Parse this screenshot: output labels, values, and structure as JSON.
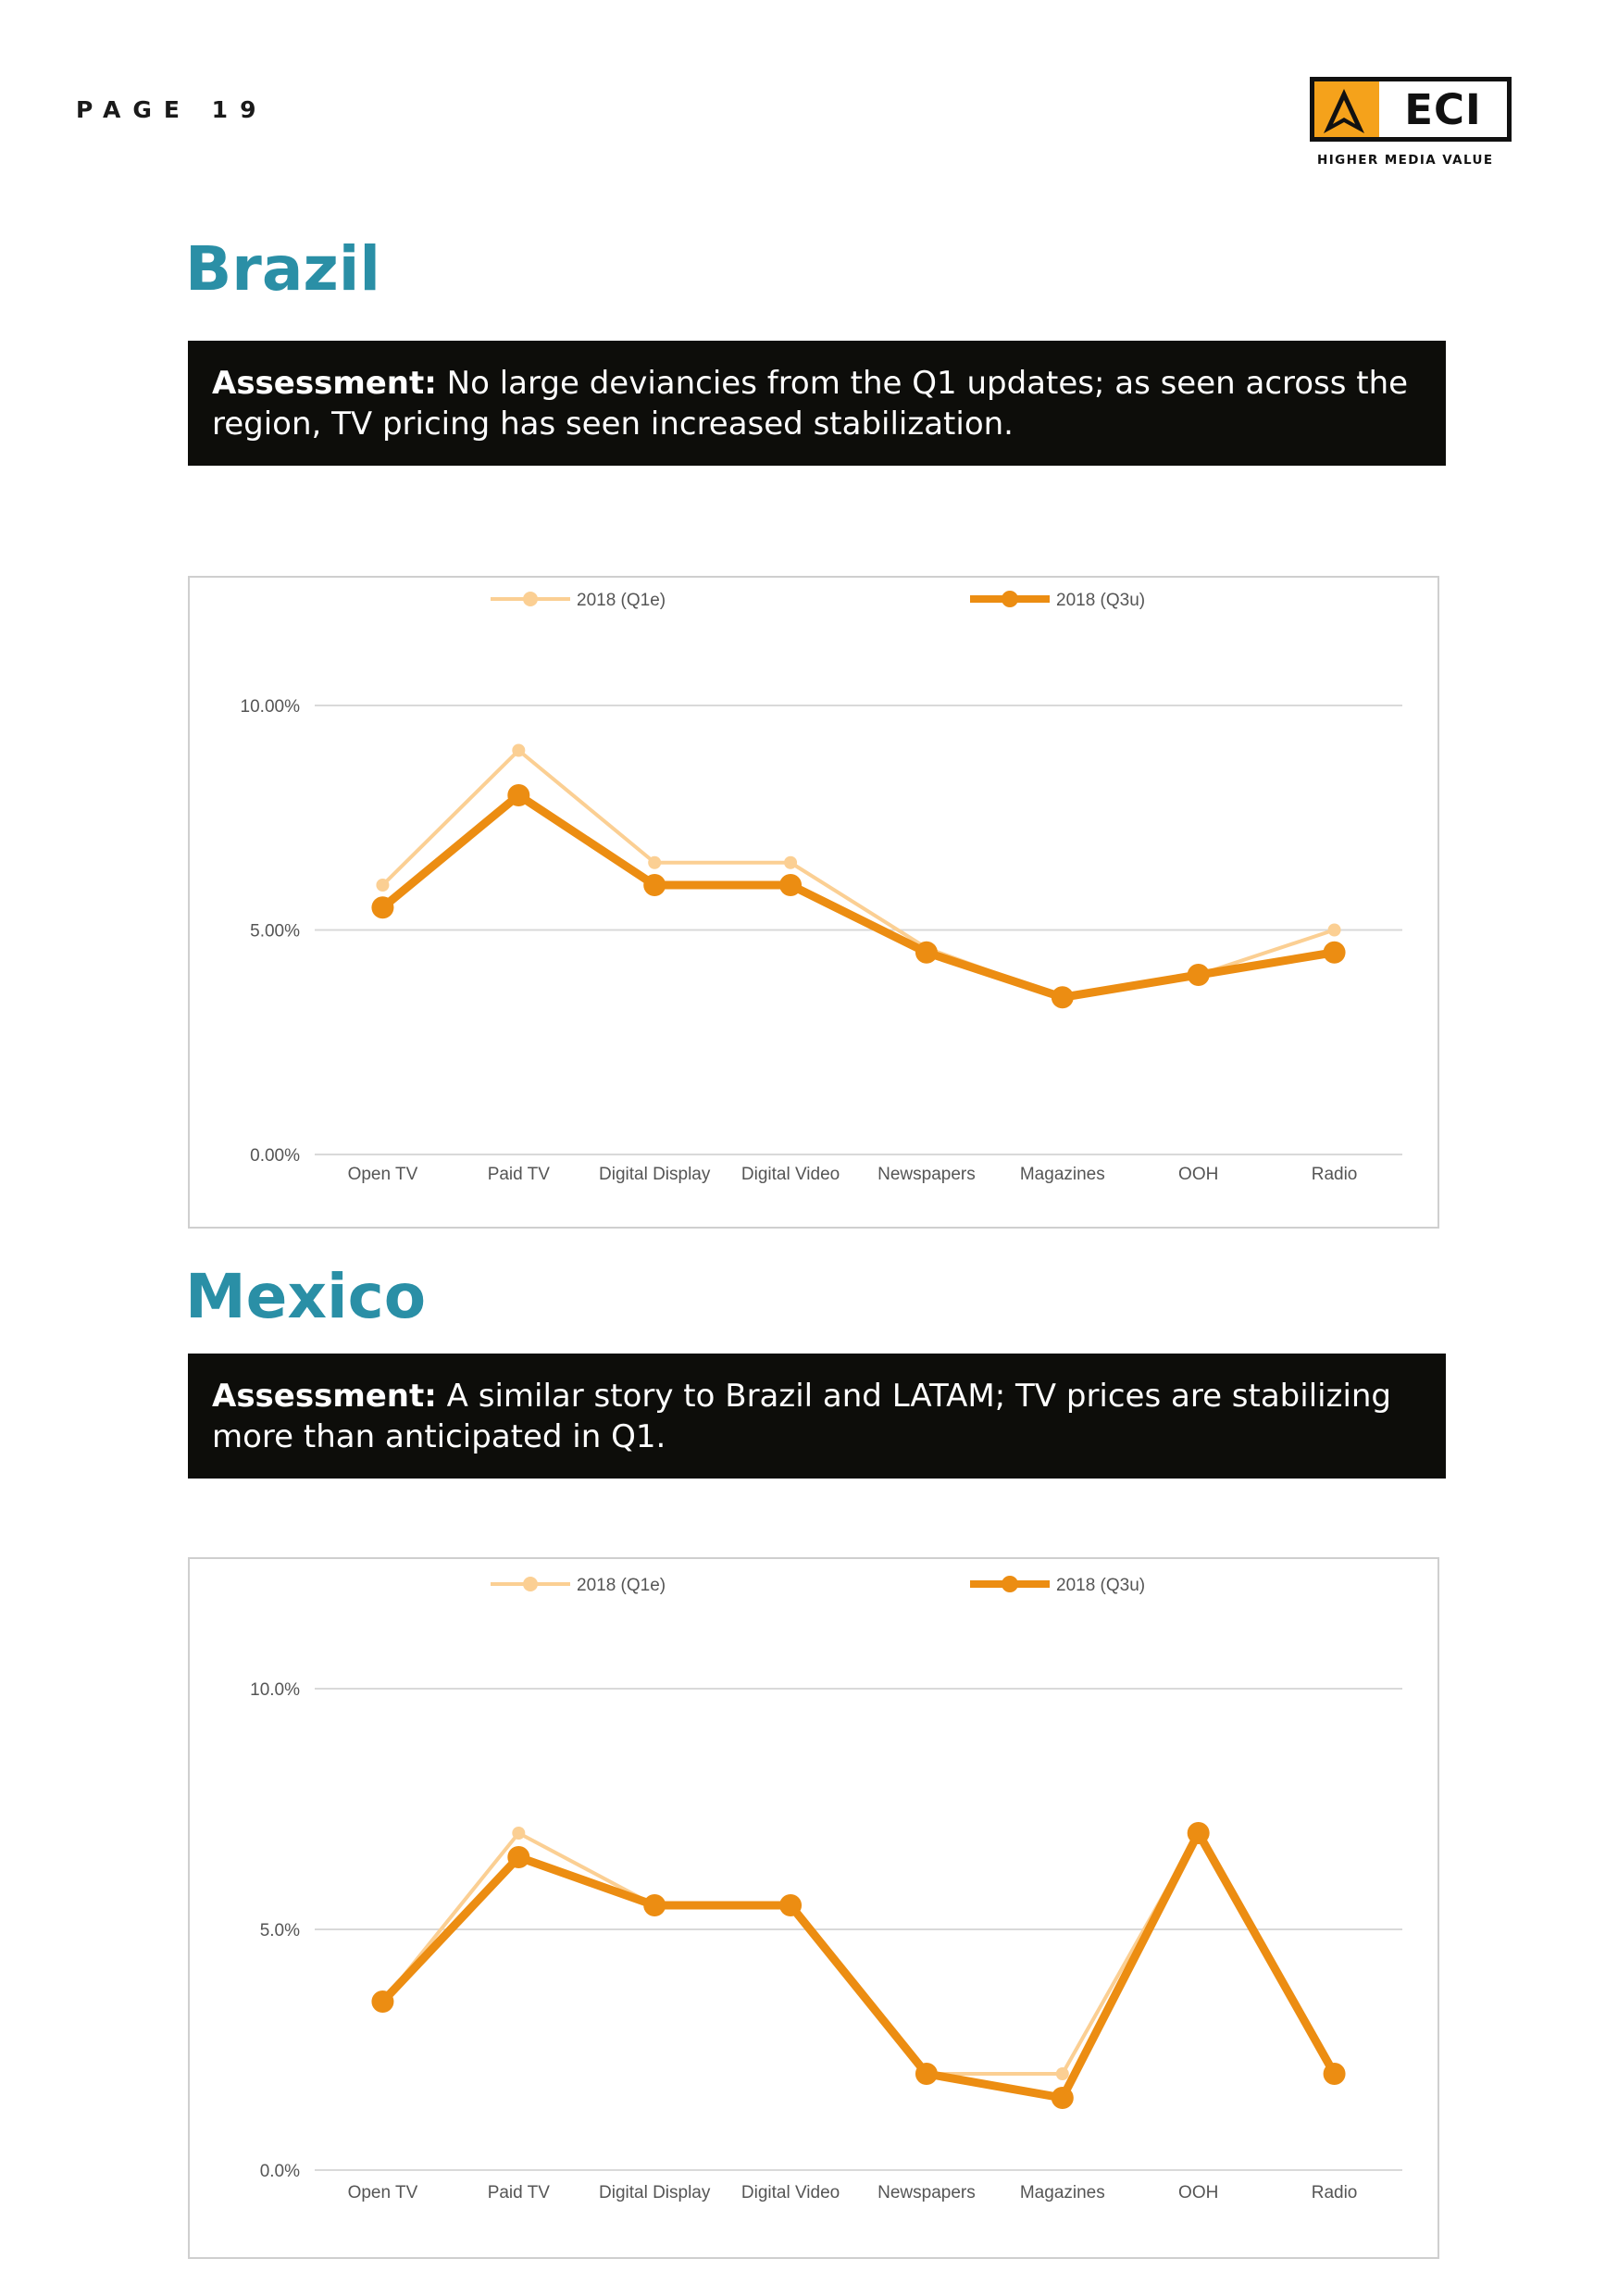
{
  "header": {
    "page_label": "PAGE 19"
  },
  "logo": {
    "text": "ECI",
    "tagline": "HIGHER MEDIA VALUE",
    "accent": "#f5a21b"
  },
  "sections": [
    {
      "title": "Brazil",
      "assessment_label": "Assessment:",
      "assessment_text": " No large deviancies from the Q1 updates; as seen across the region, TV pricing has seen increased stabilization."
    },
    {
      "title": "Mexico",
      "assessment_label": "Assessment:",
      "assessment_text": " A similar story to Brazil and LATAM; TV prices are stabilizing more than anticipated in Q1."
    }
  ],
  "chart_data": [
    {
      "type": "line",
      "categories": [
        "Open TV",
        "Paid TV",
        "Digital Display",
        "Digital Video",
        "Newspapers",
        "Magazines",
        "OOH",
        "Radio"
      ],
      "ylim": [
        0,
        10
      ],
      "yticks": [
        0,
        5,
        10
      ],
      "ytick_labels": [
        "0.00%",
        "5.00%",
        "10.00%"
      ],
      "grid": true,
      "legend_position": "top",
      "series": [
        {
          "name": "2018 (Q1e)",
          "color": "#fbcf93",
          "values": [
            6.0,
            9.0,
            6.5,
            6.5,
            4.6,
            3.5,
            4.0,
            5.0
          ]
        },
        {
          "name": "2018 (Q3u)",
          "color": "#ec8d12",
          "values": [
            5.5,
            8.0,
            6.0,
            6.0,
            4.5,
            3.5,
            4.0,
            4.5
          ]
        }
      ]
    },
    {
      "type": "line",
      "categories": [
        "Open TV",
        "Paid TV",
        "Digital Display",
        "Digital Video",
        "Newspapers",
        "Magazines",
        "OOH",
        "Radio"
      ],
      "ylim": [
        0,
        10
      ],
      "yticks": [
        0,
        5,
        10
      ],
      "ytick_labels": [
        "0.0%",
        "5.0%",
        "10.0%"
      ],
      "grid": true,
      "legend_position": "top",
      "series": [
        {
          "name": "2018 (Q1e)",
          "color": "#fbcf93",
          "values": [
            3.5,
            7.0,
            5.5,
            5.5,
            2.0,
            2.0,
            7.0,
            2.0
          ]
        },
        {
          "name": "2018 (Q3u)",
          "color": "#ec8d12",
          "values": [
            3.5,
            6.5,
            5.5,
            5.5,
            2.0,
            1.5,
            7.0,
            2.0
          ]
        }
      ]
    }
  ]
}
